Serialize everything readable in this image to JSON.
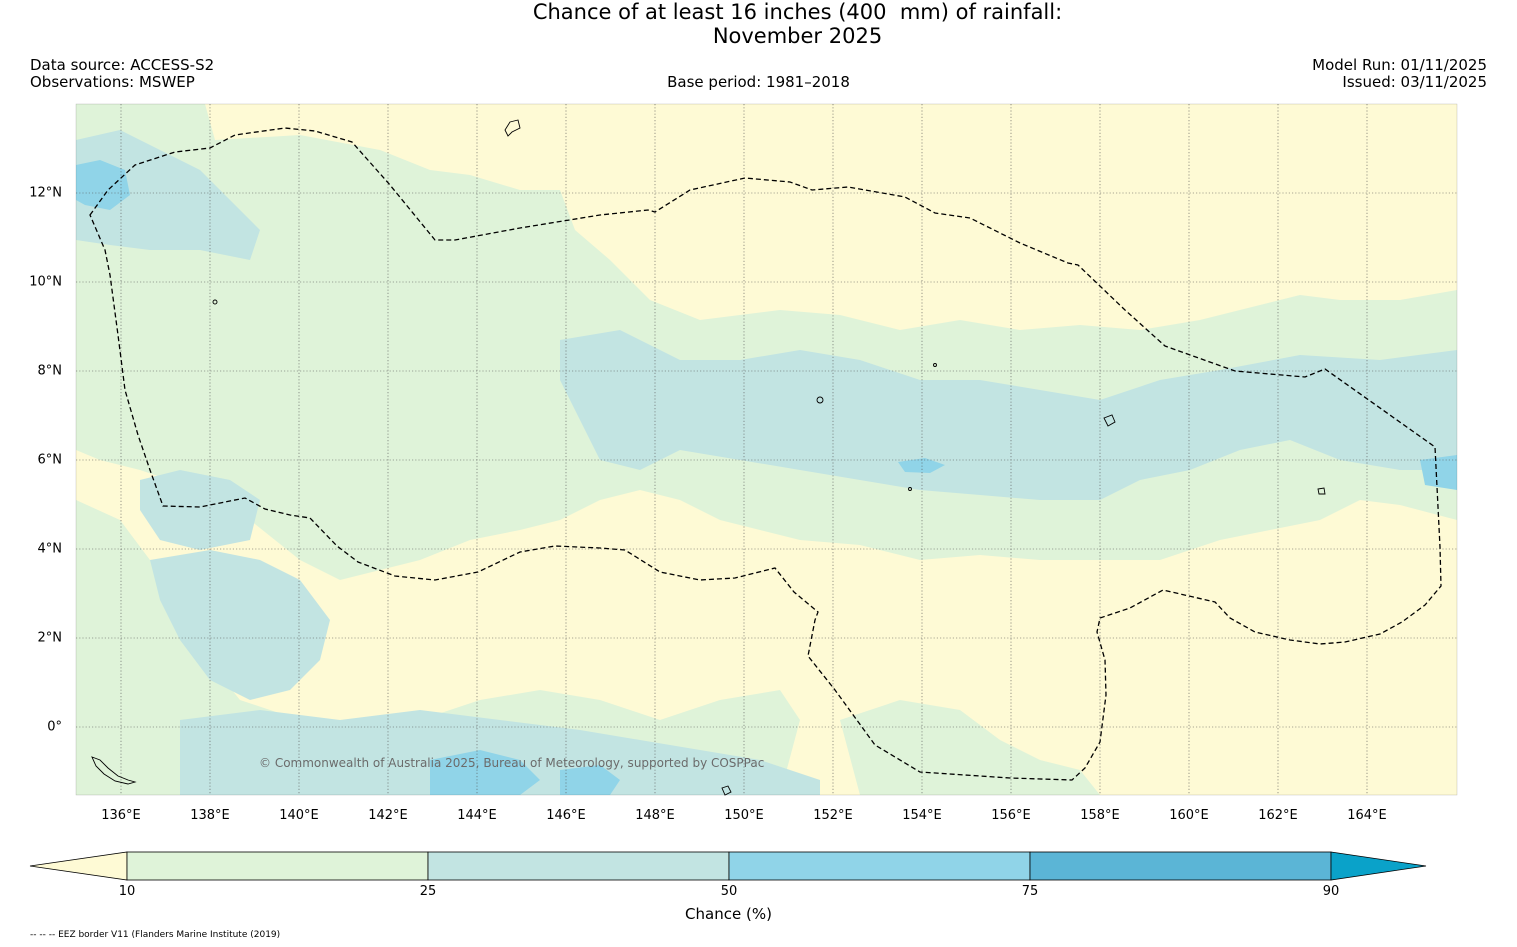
{
  "title": {
    "line1": "Chance of at least 16 inches (400  mm) of rainfall:",
    "line2": "November 2025"
  },
  "meta": {
    "data_source": "Data source: ACCESS-S2",
    "observations": "Observations: MSWEP",
    "base_period": "Base period: 1981–2018",
    "model_run": "Model Run: 01/11/2025",
    "issued": "Issued: 03/11/2025"
  },
  "map": {
    "x_ticks": [
      "136°E",
      "138°E",
      "140°E",
      "142°E",
      "144°E",
      "146°E",
      "148°E",
      "150°E",
      "152°E",
      "154°E",
      "156°E",
      "158°E",
      "160°E",
      "162°E",
      "164°E"
    ],
    "y_ticks": [
      "12°N",
      "10°N",
      "8°N",
      "6°N",
      "4°N",
      "2°N",
      "0°"
    ],
    "copyright": "© Commonwealth of Australia 2025, Bureau of Meteorology, supported by COSPPac",
    "colors": {
      "below_10": "#fefad5",
      "c10_25": "#dff3d9",
      "c25_50": "#c2e4e2",
      "c50_75": "#90d4e8",
      "c75_90": "#5bb5d6",
      "above_90": "#0aa2c9"
    }
  },
  "colorbar": {
    "ticks": [
      "10",
      "25",
      "50",
      "75",
      "90"
    ],
    "label": "Chance (%)"
  },
  "footnote": "-- -- -- EEZ border V11 (Flanders Marine Institute (2019)"
}
